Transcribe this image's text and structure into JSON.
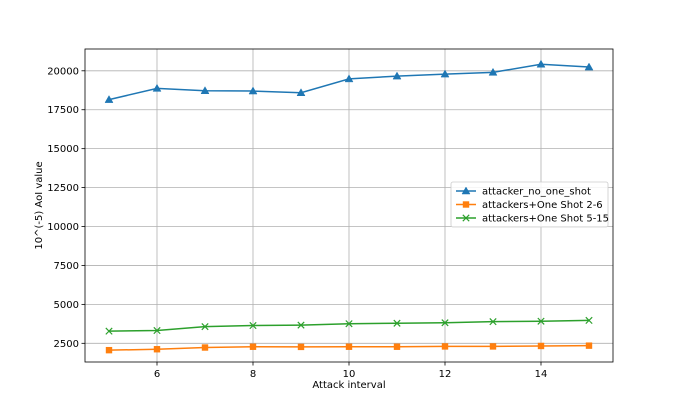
{
  "chart_data": {
    "type": "line",
    "xlabel": "Attack interval",
    "ylabel": "10^(-5) AoI value",
    "xlim": [
      4.5,
      15.5
    ],
    "ylim": [
      1300,
      21400
    ],
    "xticks": [
      6,
      8,
      10,
      12,
      14
    ],
    "yticks": [
      2500,
      5000,
      7500,
      10000,
      12500,
      15000,
      17500,
      20000
    ],
    "grid": true,
    "legend_position": "center-right",
    "x": [
      5,
      6,
      7,
      8,
      9,
      10,
      11,
      12,
      13,
      14,
      15
    ],
    "series": [
      {
        "name": "attacker_no_one_shot",
        "color": "#1f77b4",
        "marker": "triangle",
        "values": [
          18150,
          18870,
          18720,
          18700,
          18590,
          19480,
          19660,
          19790,
          19900,
          20420,
          20240
        ]
      },
      {
        "name": "attackers+One Shot 2-6",
        "color": "#ff7f0e",
        "marker": "square",
        "values": [
          2060,
          2120,
          2230,
          2280,
          2270,
          2280,
          2280,
          2300,
          2300,
          2330,
          2350
        ]
      },
      {
        "name": "attackers+One Shot 5-15",
        "color": "#2ca02c",
        "marker": "x",
        "values": [
          3280,
          3320,
          3570,
          3640,
          3670,
          3760,
          3790,
          3820,
          3890,
          3920,
          3970
        ]
      }
    ]
  }
}
